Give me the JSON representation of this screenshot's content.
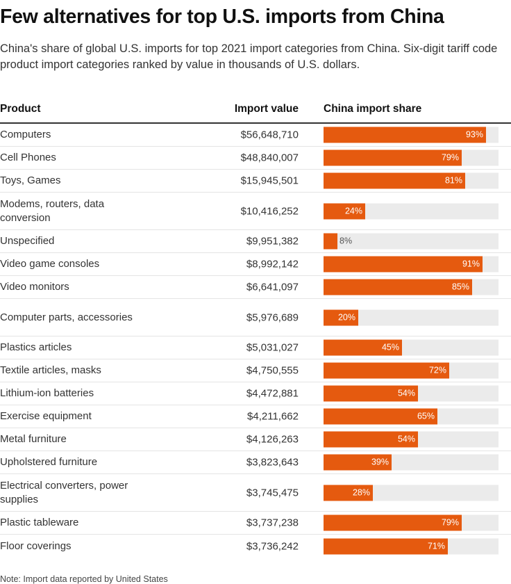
{
  "title": "Few alternatives for top U.S. imports from China",
  "subtitle": "China's share of  global U.S. imports for top 2021 import categories from China. Six-digit tariff code product import categories ranked by value in thousands of U.S. dollars.",
  "note": "Note: Import data reported by United States",
  "chart_data": {
    "type": "table",
    "title": "Few alternatives for top U.S. imports from China",
    "columns": [
      "Product",
      "Import value",
      "China import share"
    ],
    "bar_color": "#e55a0f",
    "track_color": "#ebebeb",
    "share_range": [
      0,
      100
    ],
    "rows": [
      {
        "product": "Computers",
        "value": "$56,648,710",
        "share": 93,
        "share_label": "93%"
      },
      {
        "product": "Cell Phones",
        "value": "$48,840,007",
        "share": 79,
        "share_label": "79%"
      },
      {
        "product": "Toys, Games",
        "value": "$15,945,501",
        "share": 81,
        "share_label": "81%"
      },
      {
        "product": "Modems, routers, data conversion",
        "value": "$10,416,252",
        "share": 24,
        "share_label": "24%"
      },
      {
        "product": "Unspecified",
        "value": "$9,951,382",
        "share": 8,
        "share_label": "8%"
      },
      {
        "product": "Video game consoles",
        "value": "$8,992,142",
        "share": 91,
        "share_label": "91%"
      },
      {
        "product": "Video monitors",
        "value": "$6,641,097",
        "share": 85,
        "share_label": "85%"
      },
      {
        "product": "Computer parts, accessories",
        "value": "$5,976,689",
        "share": 20,
        "share_label": "20%"
      },
      {
        "product": "Plastics articles",
        "value": "$5,031,027",
        "share": 45,
        "share_label": "45%"
      },
      {
        "product": "Textile articles, masks",
        "value": "$4,750,555",
        "share": 72,
        "share_label": "72%"
      },
      {
        "product": "Lithium-ion batteries",
        "value": "$4,472,881",
        "share": 54,
        "share_label": "54%"
      },
      {
        "product": "Exercise equipment",
        "value": "$4,211,662",
        "share": 65,
        "share_label": "65%"
      },
      {
        "product": "Metal furniture",
        "value": "$4,126,263",
        "share": 54,
        "share_label": "54%"
      },
      {
        "product": "Upholstered furniture",
        "value": "$3,823,643",
        "share": 39,
        "share_label": "39%"
      },
      {
        "product": "Electrical converters, power supplies",
        "value": "$3,745,475",
        "share": 28,
        "share_label": "28%"
      },
      {
        "product": "Plastic tableware",
        "value": "$3,737,238",
        "share": 79,
        "share_label": "79%"
      },
      {
        "product": "Floor coverings",
        "value": "$3,736,242",
        "share": 71,
        "share_label": "71%"
      }
    ]
  }
}
